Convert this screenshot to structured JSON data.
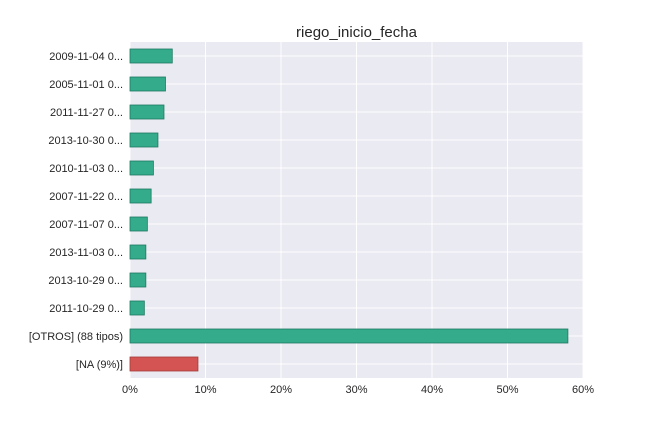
{
  "chart_data": {
    "type": "bar",
    "orientation": "horizontal",
    "title": "riego_inicio_fecha",
    "xlabel": "",
    "ylabel": "",
    "categories": [
      "2009-11-04 0...",
      "2005-11-01 0...",
      "2011-11-27 0...",
      "2013-10-30 0...",
      "2010-11-03 0...",
      "2007-11-22 0...",
      "2007-11-07 0...",
      "2013-11-03 0...",
      "2013-10-29 0...",
      "2011-10-29 0...",
      "[OTROS] (88 tipos)",
      "[NA (9%)]"
    ],
    "values": [
      5.6,
      4.7,
      4.5,
      3.7,
      3.1,
      2.8,
      2.3,
      2.1,
      2.1,
      1.9,
      58.0,
      9.0
    ],
    "value_unit": "%",
    "xlim": [
      0,
      60
    ],
    "xticks": [
      0,
      10,
      20,
      30,
      40,
      50,
      60
    ],
    "xtick_labels": [
      "0%",
      "10%",
      "20%",
      "30%",
      "40%",
      "50%",
      "60%"
    ],
    "grid": true,
    "colors": {
      "default_bar": "#34ab8a",
      "default_edge": "#1f7a61",
      "na_bar": "#d35452",
      "na_edge": "#a33a38",
      "plot_background": "#eaeaf2",
      "grid": "#ffffff",
      "text": "#262626"
    }
  }
}
